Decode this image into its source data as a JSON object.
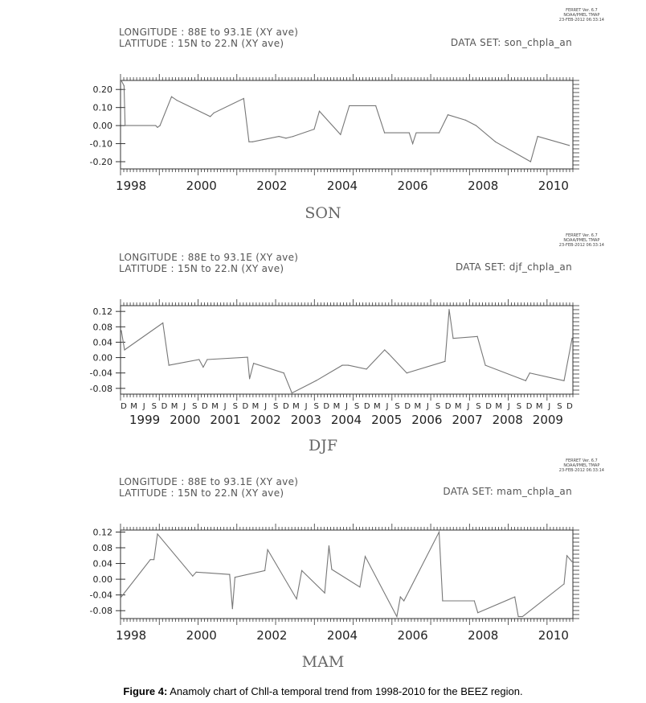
{
  "ferret": [
    "FERRET Ver. 6.7",
    "NOAA/PMEL TMAP",
    "23-FEB-2012 06:33:14"
  ],
  "caption": {
    "label": "Figure 4:",
    "text": "Anamoly chart of Chll-a temporal trend from 1998-2010 for the BEEZ region."
  },
  "chart_data": [
    {
      "type": "line",
      "season": "SON",
      "header": {
        "longitude": "LONGITUDE : 88E to 93.1E (XY ave)",
        "latitude": "LATITUDE : 15N to 22.N (XY ave)",
        "dataset": "DATA SET: son_chpla_an"
      },
      "xlim": [
        1997.7,
        2010.55
      ],
      "ylim": [
        -0.24,
        0.25
      ],
      "yticks": [
        "0.20",
        "0.10",
        "0.00",
        "-0.10",
        "-0.20"
      ],
      "ytick_values": [
        0.2,
        0.1,
        0.0,
        -0.1,
        -0.2
      ],
      "xticks": [
        "1998",
        "2000",
        "2002",
        "2004",
        "2006",
        "2008",
        "2010"
      ],
      "xtick_values": [
        1998,
        2000,
        2002,
        2004,
        2006,
        2008,
        2010
      ],
      "x": [
        1997.72,
        1997.8,
        1997.83,
        1998.7,
        1998.75,
        1998.82,
        1999.15,
        1999.3,
        2000.25,
        2000.35,
        2001.2,
        2001.35,
        2001.45,
        2002.2,
        2002.4,
        2002.6,
        2003.2,
        2003.35,
        2003.95,
        2004.2,
        2004.95,
        2005.2,
        2005.9,
        2006.0,
        2006.1,
        2006.75,
        2007.0,
        2007.5,
        2007.8,
        2008.35,
        2009.35,
        2009.55,
        2010.45
      ],
      "y": [
        0.25,
        0.22,
        0.0,
        0.0,
        -0.01,
        0.0,
        0.16,
        0.14,
        0.05,
        0.07,
        0.15,
        -0.09,
        -0.09,
        -0.06,
        -0.07,
        -0.06,
        -0.02,
        0.08,
        -0.05,
        0.11,
        0.11,
        -0.04,
        -0.04,
        -0.1,
        -0.04,
        -0.04,
        0.06,
        0.03,
        0.0,
        -0.09,
        -0.2,
        -0.06,
        -0.11
      ]
    },
    {
      "type": "line",
      "season": "DJF",
      "header": {
        "longitude": "LONGITUDE : 88E to 93.1E (XY ave)",
        "latitude": "LATITUDE : 15N to 22.N (XY ave)",
        "dataset": "DATA SET: djf_chpla_an"
      },
      "xlim": [
        1998.9,
        2010.12
      ],
      "ylim": [
        -0.095,
        0.135
      ],
      "yticks": [
        "0.12",
        "0.08",
        "0.04",
        "0.00",
        "-0.04",
        "-0.08"
      ],
      "ytick_values": [
        0.12,
        0.08,
        0.04,
        0.0,
        -0.04,
        -0.08
      ],
      "month_labels": [
        "D",
        "M",
        "J",
        "S",
        "D",
        "M",
        "J",
        "S",
        "D",
        "M",
        "J",
        "S",
        "D",
        "M",
        "J",
        "S",
        "D",
        "M",
        "J",
        "S",
        "D",
        "M",
        "J",
        "S",
        "D",
        "M",
        "J",
        "S",
        "D",
        "M",
        "J",
        "S",
        "D",
        "M",
        "J",
        "S",
        "D",
        "M",
        "J",
        "S",
        "D",
        "M",
        "J",
        "S",
        "D"
      ],
      "xticks": [
        "1999",
        "2000",
        "2001",
        "2002",
        "2003",
        "2004",
        "2005",
        "2006",
        "2007",
        "2008",
        "2009"
      ],
      "xtick_values": [
        1999.5,
        2000.5,
        2001.5,
        2002.5,
        2003.5,
        2004.5,
        2005.5,
        2006.5,
        2007.5,
        2008.5,
        2009.5
      ],
      "x": [
        1998.92,
        1999.0,
        1999.95,
        2000.1,
        2000.85,
        2000.95,
        2001.05,
        2002.05,
        2002.1,
        2002.2,
        2002.95,
        2003.15,
        2003.75,
        2004.4,
        2004.55,
        2005.0,
        2005.45,
        2005.55,
        2006.0,
        2006.95,
        2007.05,
        2007.15,
        2007.75,
        2007.95,
        2008.95,
        2009.05,
        2009.9,
        2010.1
      ],
      "y": [
        0.07,
        0.02,
        0.09,
        -0.02,
        -0.005,
        -0.025,
        -0.005,
        0.001,
        -0.055,
        -0.015,
        -0.04,
        -0.092,
        -0.06,
        -0.02,
        -0.02,
        -0.03,
        0.02,
        0.01,
        -0.04,
        -0.01,
        0.125,
        0.05,
        0.055,
        -0.02,
        -0.06,
        -0.04,
        -0.06,
        0.05
      ]
    },
    {
      "type": "line",
      "season": "MAM",
      "header": {
        "longitude": "LONGITUDE : 88E to 93.1E (XY ave)",
        "latitude": "LATITUDE : 15N to 22.N (XY ave)",
        "dataset": "DATA SET: mam_chpla_an"
      },
      "xlim": [
        1997.7,
        2010.55
      ],
      "ylim": [
        -0.1,
        0.125
      ],
      "yticks": [
        "0.12",
        "0.08",
        "0.04",
        "0.00",
        "-0.04",
        "-0.08"
      ],
      "ytick_values": [
        0.12,
        0.08,
        0.04,
        0.0,
        -0.04,
        -0.08
      ],
      "xticks": [
        "1998",
        "2000",
        "2002",
        "2004",
        "2006",
        "2008",
        "2010"
      ],
      "xtick_values": [
        1998,
        2000,
        2002,
        2004,
        2006,
        2008,
        2010
      ],
      "x": [
        1997.72,
        1998.55,
        1998.65,
        1998.75,
        1999.75,
        1999.85,
        2000.8,
        2000.88,
        2000.95,
        2001.8,
        2001.88,
        2002.7,
        2002.85,
        2003.5,
        2003.62,
        2003.7,
        2004.5,
        2004.65,
        2005.55,
        2005.65,
        2005.75,
        2006.75,
        2006.85,
        2007.75,
        2007.85,
        2008.9,
        2009.0,
        2009.12,
        2010.3,
        2010.38,
        2010.52
      ],
      "y": [
        -0.045,
        0.05,
        0.05,
        0.115,
        0.008,
        0.018,
        0.012,
        -0.075,
        0.005,
        0.022,
        0.075,
        -0.05,
        0.022,
        -0.035,
        0.085,
        0.025,
        -0.02,
        0.058,
        -0.095,
        -0.045,
        -0.055,
        0.12,
        -0.055,
        -0.055,
        -0.085,
        -0.045,
        -0.095,
        -0.095,
        -0.012,
        0.06,
        0.045
      ]
    }
  ]
}
